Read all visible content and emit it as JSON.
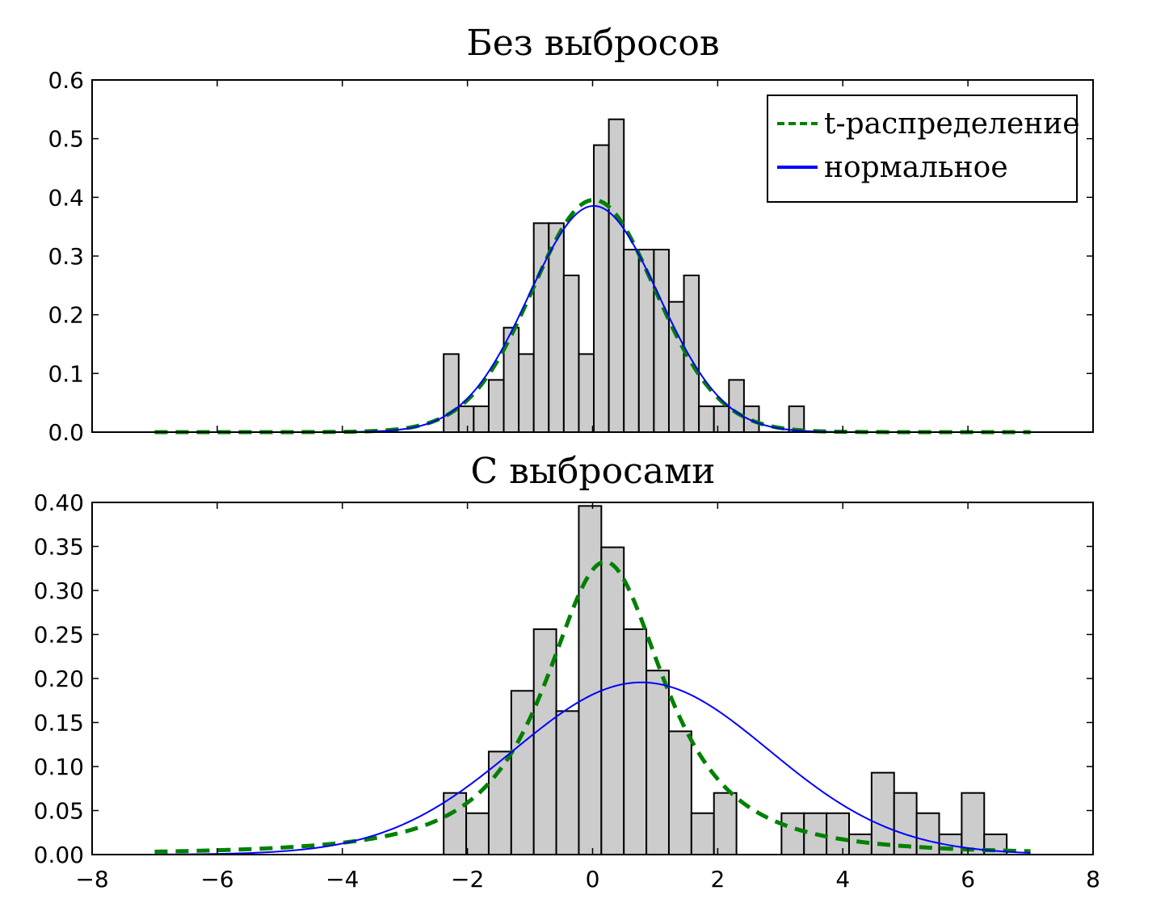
{
  "chart_data": [
    {
      "type": "bar",
      "title": "Без выбросов",
      "xlim": [
        -8,
        8
      ],
      "ylim": [
        0,
        0.6
      ],
      "yticks": [
        "0.0",
        "0.1",
        "0.2",
        "0.3",
        "0.4",
        "0.5",
        "0.6"
      ],
      "ytick_values": [
        0,
        0.1,
        0.2,
        0.3,
        0.4,
        0.5,
        0.6
      ],
      "show_x_tick_labels": false,
      "histogram": {
        "color": "#cccccc",
        "edgecolor": "#000000",
        "bin_edges": [
          -2.38,
          -2.14,
          -1.9,
          -1.66,
          -1.42,
          -1.18,
          -0.94,
          -0.7,
          -0.46,
          -0.22,
          0.02,
          0.26,
          0.5,
          0.74,
          0.98,
          1.22,
          1.46,
          1.7,
          1.94,
          2.18,
          2.42,
          2.66,
          2.9,
          3.14,
          3.38
        ],
        "values": [
          0.133,
          0.044,
          0.044,
          0.089,
          0.178,
          0.133,
          0.356,
          0.356,
          0.267,
          0.133,
          0.489,
          0.533,
          0.311,
          0.311,
          0.311,
          0.222,
          0.267,
          0.044,
          0.044,
          0.089,
          0.044,
          0.0,
          0.0,
          0.044
        ]
      },
      "series": [
        {
          "name": "t-распределение",
          "style": "dashed",
          "color": "#008000",
          "distribution": "t",
          "loc": 0.02,
          "scale": 1.0,
          "df": 30,
          "x_range": [
            -7,
            7
          ]
        },
        {
          "name": "нормальное",
          "style": "solid",
          "color": "#0000ff",
          "distribution": "normal",
          "loc": 0.02,
          "scale": 1.035,
          "x_range": [
            -7,
            7
          ]
        }
      ],
      "legend": {
        "placement": "top-right",
        "entries": [
          "t-распределение",
          "нормальное"
        ]
      }
    },
    {
      "type": "bar",
      "title": "С выбросами",
      "xlim": [
        -8,
        8
      ],
      "ylim": [
        0,
        0.4
      ],
      "yticks": [
        "0.00",
        "0.05",
        "0.10",
        "0.15",
        "0.20",
        "0.25",
        "0.30",
        "0.35",
        "0.40"
      ],
      "ytick_values": [
        0,
        0.05,
        0.1,
        0.15,
        0.2,
        0.25,
        0.3,
        0.35,
        0.4
      ],
      "xticks": [
        "−8",
        "−6",
        "−4",
        "−2",
        "0",
        "2",
        "4",
        "6",
        "8"
      ],
      "xtick_values": [
        -8,
        -6,
        -4,
        -2,
        0,
        2,
        4,
        6,
        8
      ],
      "histogram": {
        "color": "#cccccc",
        "edgecolor": "#000000",
        "bin_edges": [
          -2.38,
          -2.02,
          -1.66,
          -1.3,
          -0.94,
          -0.58,
          -0.22,
          0.14,
          0.5,
          0.86,
          1.22,
          1.58,
          1.94,
          2.3,
          2.66,
          3.02,
          3.38,
          3.74,
          4.1,
          4.46,
          4.82,
          5.18,
          5.54,
          5.9,
          6.26,
          6.62
        ],
        "values": [
          0.07,
          0.047,
          0.117,
          0.186,
          0.256,
          0.163,
          0.396,
          0.349,
          0.256,
          0.209,
          0.14,
          0.047,
          0.07,
          0.0,
          0.0,
          0.047,
          0.047,
          0.047,
          0.023,
          0.093,
          0.07,
          0.047,
          0.023,
          0.07,
          0.023
        ]
      },
      "series": [
        {
          "name": "t-распределение",
          "style": "dashed",
          "color": "#008000",
          "distribution": "t",
          "loc": 0.2,
          "scale": 1.05,
          "df": 1.8,
          "x_range": [
            -7,
            7
          ]
        },
        {
          "name": "нормальное",
          "style": "solid",
          "color": "#0000ff",
          "distribution": "normal",
          "loc": 0.78,
          "scale": 2.04,
          "x_range": [
            -7,
            7
          ]
        }
      ]
    }
  ]
}
